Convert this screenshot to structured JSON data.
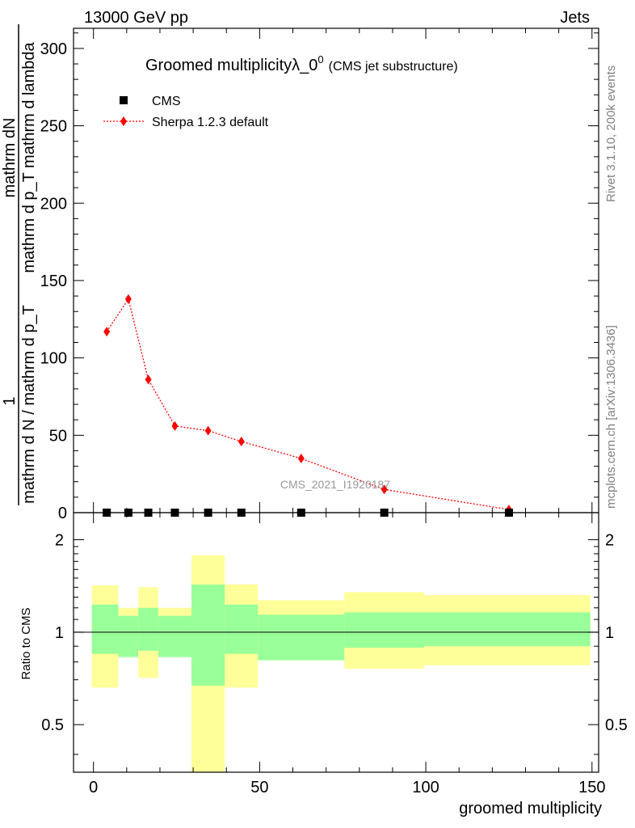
{
  "header": {
    "left": "13000 GeV pp",
    "right": "Jets"
  },
  "side": {
    "rivet": "Rivet 3.1.10,  200k events",
    "mcplots": "mcplots.cern.ch [arXiv:1306.3436]"
  },
  "chart_data": [
    {
      "type": "line",
      "title_main": "Groomed multiplicityλ_0",
      "title_sup": "0",
      "title_sub": "(CMS jet substructure)",
      "ylabel_top": "1",
      "ylabel_frac_num": "mathrm dN",
      "ylabel_frac_den": "mathrm d p_T mathrm d lambda",
      "ylabel_bottom": "mathrm d N / mathrm d p_T",
      "ylim": [
        0,
        313
      ],
      "xlim": [
        -6,
        152
      ],
      "yticks": [
        0,
        50,
        100,
        150,
        200,
        250,
        300
      ],
      "ytick_labels": [
        "0",
        "50",
        "100",
        "150",
        "200",
        "250",
        "300"
      ],
      "watermark": "CMS_2021_I1920187",
      "legend_position": "top-left",
      "legend": [
        {
          "label": "CMS",
          "marker": "square",
          "color": "#000000"
        },
        {
          "label": "Sherpa 1.2.3 default",
          "marker": "diamond",
          "color": "#ff0000",
          "line": "dotted"
        }
      ],
      "series": [
        {
          "name": "CMS",
          "x": [
            4,
            10.5,
            16.5,
            24.5,
            34.5,
            44.5,
            62.5,
            87.5,
            125
          ],
          "y": [
            0,
            0,
            0,
            0,
            0,
            0,
            0,
            0,
            0
          ]
        },
        {
          "name": "Sherpa 1.2.3 default",
          "x": [
            4,
            10.5,
            16.5,
            24.5,
            34.5,
            44.5,
            62.5,
            87.5,
            125
          ],
          "y": [
            117,
            138,
            86,
            56,
            53,
            46,
            35,
            15,
            2
          ]
        }
      ]
    },
    {
      "type": "area",
      "ylabel": "Ratio to CMS",
      "xlabel": "groomed multiplicity",
      "scale": "log",
      "ylim": [
        0.35,
        2.45
      ],
      "xlim": [
        -6,
        152
      ],
      "xticks": [
        0,
        50,
        100,
        150
      ],
      "xtick_labels": [
        "0",
        "50",
        "100",
        "150"
      ],
      "yticks": [
        0.5,
        1,
        2
      ],
      "ytick_labels": [
        "0.5",
        "1",
        "2"
      ],
      "reference_line": 1,
      "bands": [
        {
          "x_low": -0.5,
          "x_high": 7.5,
          "inner": [
            0.85,
            1.23
          ],
          "outer": [
            0.66,
            1.42
          ]
        },
        {
          "x_low": 7.5,
          "x_high": 13.5,
          "inner": [
            0.83,
            1.13
          ],
          "outer": [
            0.83,
            1.2
          ]
        },
        {
          "x_low": 13.5,
          "x_high": 19.5,
          "inner": [
            0.87,
            1.2
          ],
          "outer": [
            0.71,
            1.4
          ]
        },
        {
          "x_low": 19.5,
          "x_high": 29.5,
          "inner": [
            0.83,
            1.13
          ],
          "outer": [
            0.83,
            1.2
          ]
        },
        {
          "x_low": 29.5,
          "x_high": 39.5,
          "inner": [
            0.67,
            1.43
          ],
          "outer": [
            0.34,
            1.78
          ]
        },
        {
          "x_low": 39.5,
          "x_high": 49.5,
          "inner": [
            0.85,
            1.23
          ],
          "outer": [
            0.66,
            1.43
          ]
        },
        {
          "x_low": 49.5,
          "x_high": 75.5,
          "inner": [
            0.81,
            1.14
          ],
          "outer": [
            0.81,
            1.27
          ]
        },
        {
          "x_low": 75.5,
          "x_high": 99.5,
          "inner": [
            0.89,
            1.16
          ],
          "outer": [
            0.76,
            1.35
          ]
        },
        {
          "x_low": 99.5,
          "x_high": 149.5,
          "inner": [
            0.9,
            1.16
          ],
          "outer": [
            0.78,
            1.32
          ]
        }
      ]
    }
  ],
  "colors": {
    "mc": "#ff0000",
    "data": "#000000",
    "band_inner": "#99ff99",
    "band_outer": "#ffff99"
  }
}
